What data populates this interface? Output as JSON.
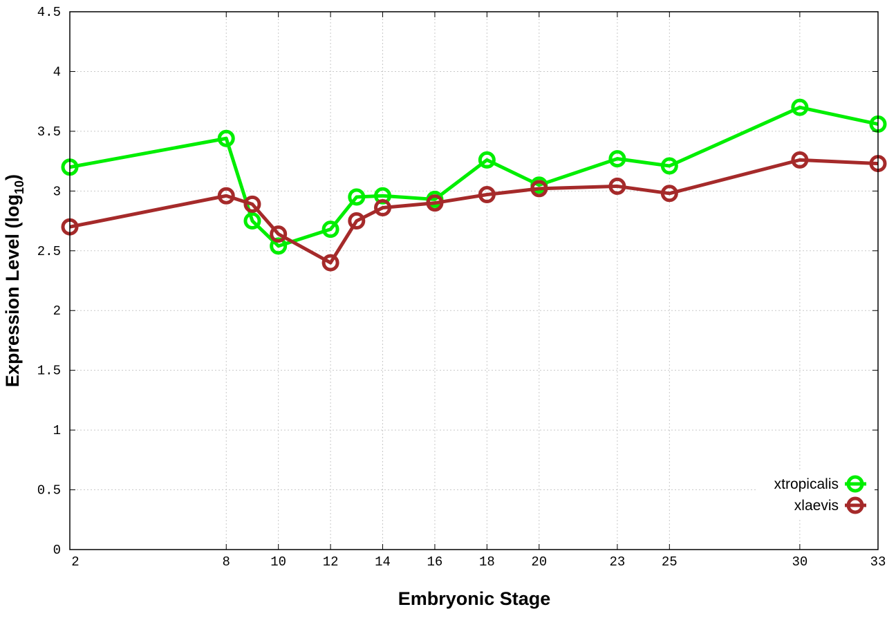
{
  "chart_data": {
    "type": "line",
    "title": "",
    "xlabel": "Embryonic Stage",
    "ylabel": "Expression Level (log",
    "ylabel_subscript": "10",
    "ylabel_close": ")",
    "xlim": [
      2,
      33
    ],
    "ylim": [
      0,
      4.5
    ],
    "x_ticks": [
      2,
      8,
      10,
      12,
      14,
      16,
      18,
      20,
      23,
      25,
      30,
      33
    ],
    "x_tick_labels": [
      "2",
      "8",
      "10",
      "12",
      "14",
      "16",
      "18",
      "20",
      "23",
      "25",
      "30",
      "33"
    ],
    "y_ticks": [
      0,
      0.5,
      1,
      1.5,
      2,
      2.5,
      3,
      3.5,
      4,
      4.5
    ],
    "y_tick_labels": [
      "0",
      "0.5",
      "1",
      "1.5",
      "2",
      "2.5",
      "3",
      "3.5",
      "4",
      "4.5"
    ],
    "grid": true,
    "legend_position": "bottom-right",
    "x": [
      2,
      8,
      9,
      10,
      12,
      13,
      14,
      16,
      18,
      20,
      23,
      25,
      30,
      33
    ],
    "series": [
      {
        "name": "xtropicalis",
        "color": "#00ee00",
        "values": [
          3.2,
          3.44,
          2.75,
          2.54,
          2.68,
          2.95,
          2.96,
          2.93,
          3.26,
          3.05,
          3.27,
          3.21,
          3.7,
          3.56
        ]
      },
      {
        "name": "xlaevis",
        "color": "#a52a2a",
        "values": [
          2.7,
          2.96,
          2.89,
          2.64,
          2.4,
          2.75,
          2.86,
          2.9,
          2.97,
          3.02,
          3.04,
          2.98,
          3.26,
          3.23
        ]
      }
    ]
  }
}
